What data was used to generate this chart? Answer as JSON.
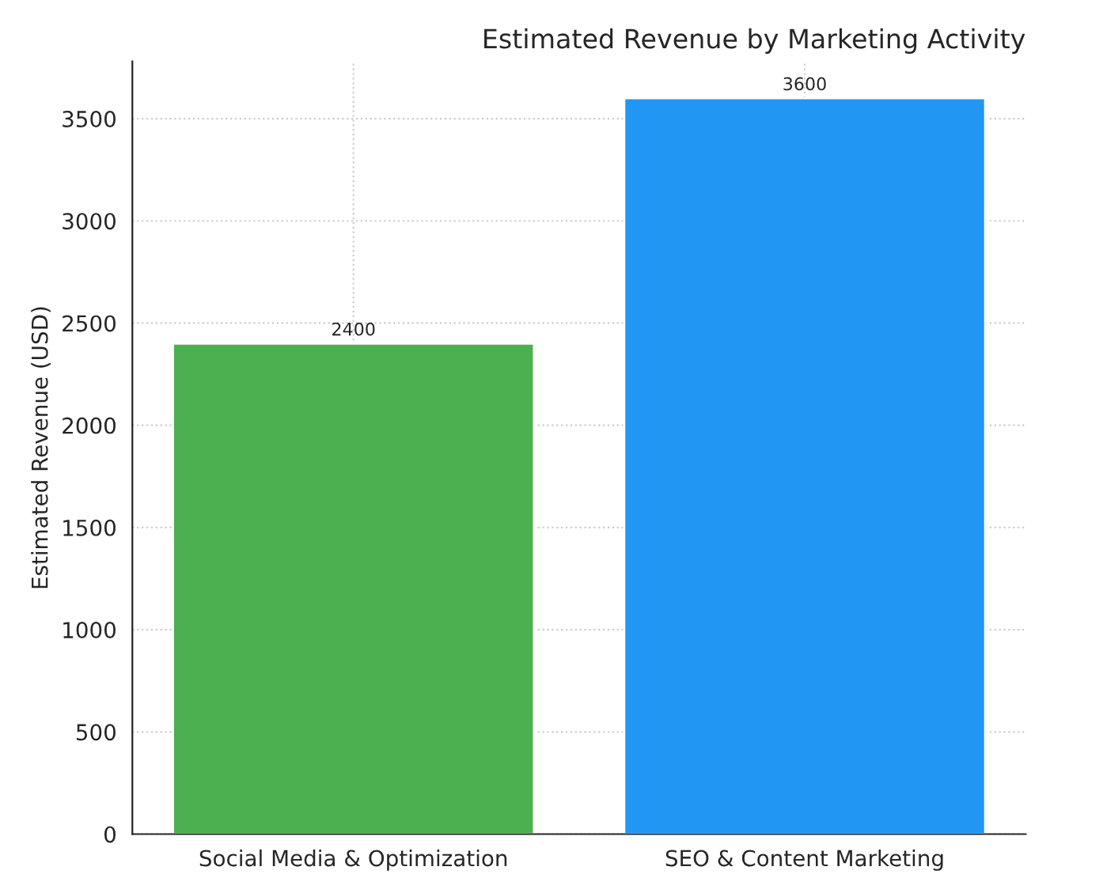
{
  "chart_data": {
    "type": "bar",
    "title": "Estimated Revenue by Marketing Activity",
    "ylabel": "Estimated Revenue (USD)",
    "categories": [
      "Social Media & Optimization",
      "SEO & Content Marketing"
    ],
    "values": [
      2400,
      3600
    ],
    "colors": [
      "#4caf50",
      "#2196f3"
    ],
    "ylim": [
      0,
      3780
    ],
    "yticks": [
      0,
      500,
      1000,
      1500,
      2000,
      2500,
      3000,
      3500
    ],
    "grid": true,
    "data_labels": true
  }
}
